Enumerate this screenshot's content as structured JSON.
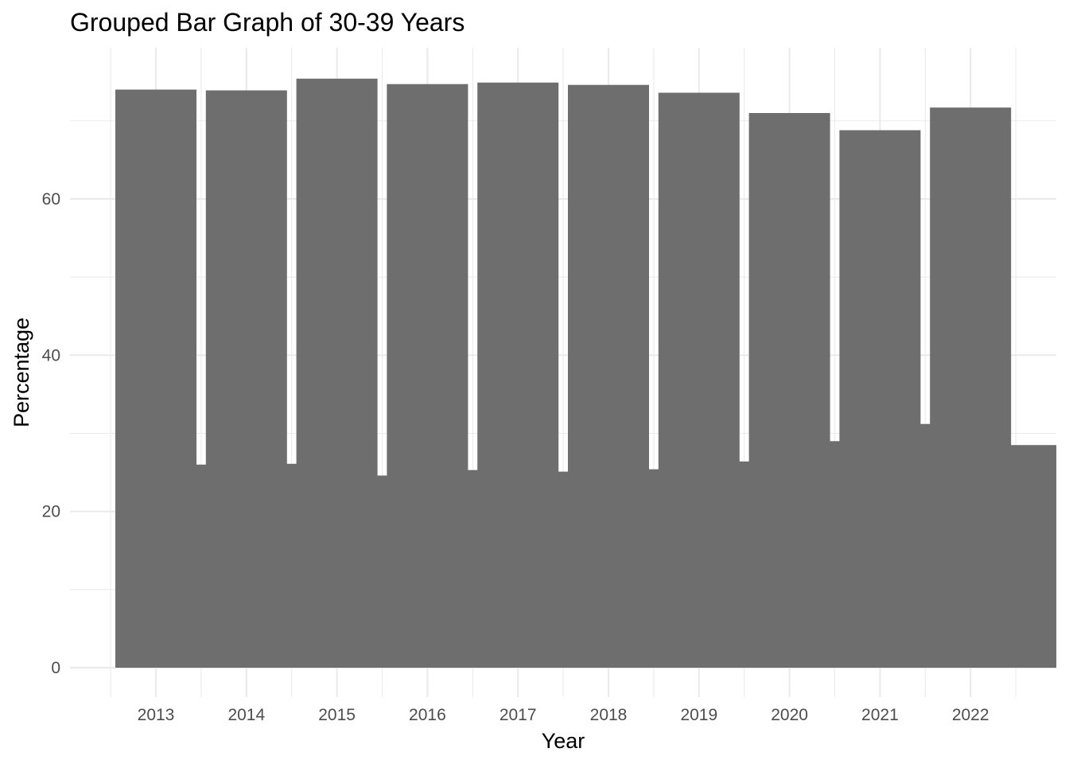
{
  "chart_data": {
    "type": "bar",
    "title": "Grouped Bar Graph of 30-39 Years",
    "xlabel": "Year",
    "ylabel": "Percentage",
    "categories": [
      "2013",
      "2014",
      "2015",
      "2016",
      "2017",
      "2018",
      "2019",
      "2020",
      "2021",
      "2022"
    ],
    "series": [
      {
        "values": [
          74.0,
          73.9,
          75.4,
          74.7,
          74.9,
          74.6,
          73.6,
          71.0,
          68.8,
          71.7
        ]
      },
      {
        "values": [
          26.0,
          26.1,
          24.6,
          25.3,
          25.1,
          25.4,
          26.4,
          29.0,
          31.2,
          28.5
        ]
      }
    ],
    "yticks": [
      0,
      20,
      40,
      60
    ],
    "ylim": [
      0,
      78
    ],
    "grid": true,
    "legend": "none",
    "colors": {
      "bar": "#6e6e6e",
      "grid": "#ebebeb",
      "background": "#ffffff"
    }
  }
}
